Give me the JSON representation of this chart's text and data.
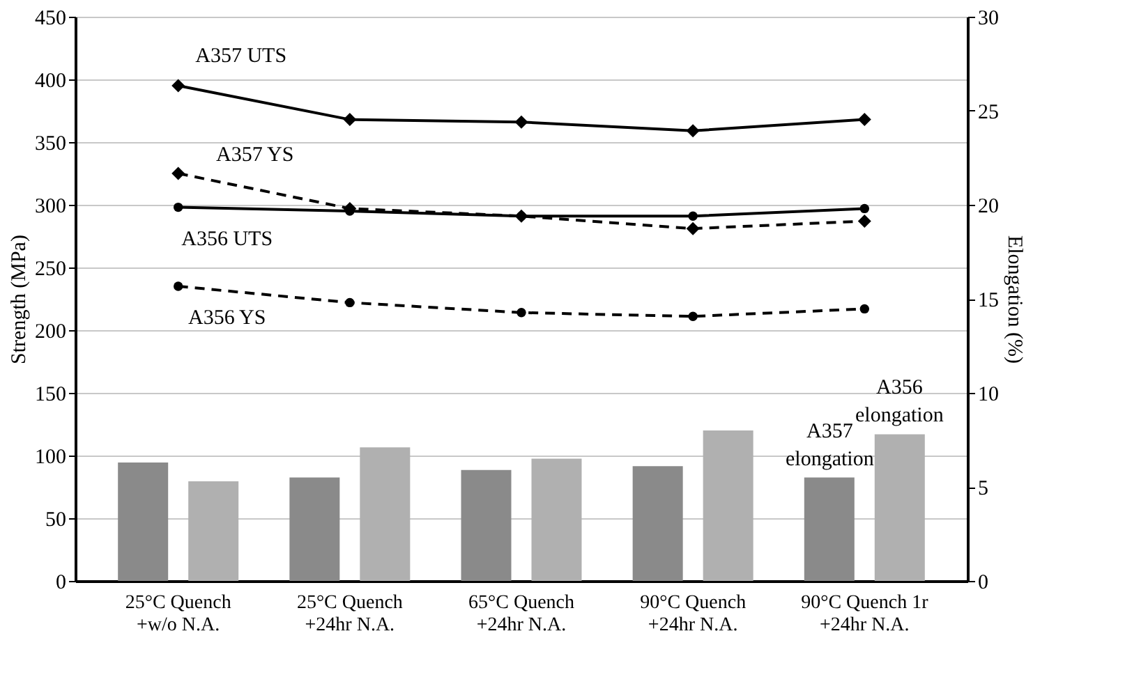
{
  "chart_data": {
    "type": "line",
    "categories": [
      "25°C Quench\n+w/o N.A.",
      "25°C Quench\n+24hr N.A.",
      "65°C Quench\n+24hr N.A.",
      "90°C Quench\n+24hr N.A.",
      "90°C Quench 1r\n+24hr N.A."
    ],
    "series": [
      {
        "name": "A357 elongation",
        "type": "bar",
        "axis": "y2",
        "color": "#8a8a8a",
        "values": [
          6.3,
          5.5,
          5.9,
          6.1,
          5.5
        ]
      },
      {
        "name": "A356 elongation",
        "type": "bar",
        "axis": "y2",
        "color": "#b0b0b0",
        "values": [
          5.3,
          7.1,
          6.5,
          8.0,
          7.8
        ]
      },
      {
        "name": "A357 UTS",
        "color": "#000000",
        "marker": "diamond",
        "line_style": "solid",
        "values": [
          395,
          368,
          366,
          359,
          368
        ]
      },
      {
        "name": "A357 YS",
        "color": "#000000",
        "marker": "diamond",
        "line_style": "dashed",
        "values": [
          325,
          297,
          291,
          281,
          287
        ]
      },
      {
        "name": "A356 UTS",
        "color": "#000000",
        "marker": "circle",
        "line_style": "solid",
        "values": [
          298,
          295,
          291,
          291,
          297
        ]
      },
      {
        "name": "A356 YS",
        "color": "#000000",
        "marker": "circle",
        "line_style": "dashed",
        "values": [
          235,
          222,
          214,
          211,
          217
        ]
      }
    ],
    "ylabel": "Strength (MPa)",
    "y2label": "Elongation (%)",
    "ylim": [
      0,
      450
    ],
    "yticks": [
      0,
      50,
      100,
      150,
      200,
      250,
      300,
      350,
      400,
      450
    ],
    "y2lim": [
      0,
      30
    ],
    "y2ticks": [
      0,
      5,
      10,
      15,
      20,
      25,
      30
    ],
    "grid": "y"
  }
}
